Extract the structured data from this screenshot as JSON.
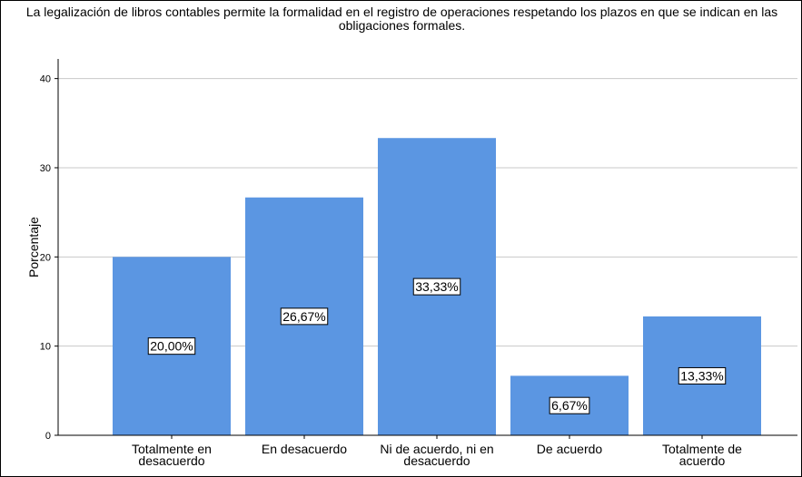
{
  "chart_data": {
    "type": "bar",
    "title": "La legalización de libros contables permite la formalidad en el registro de operaciones respetando los plazos en que se indican en las obligaciones formales.",
    "y_label": "Porcentaje",
    "categories": [
      "Totalmente en desacuerdo",
      "En desacuerdo",
      "Ni de acuerdo, ni en desacuerdo",
      "De acuerdo",
      "Totalmente de acuerdo"
    ],
    "values": [
      20,
      26.67,
      33.33,
      6.67,
      13.33
    ],
    "value_labels": [
      "20,00%",
      "26,67%",
      "33,33%",
      "6,67%",
      "13,33%"
    ],
    "color": "#5b96e2",
    "ylim": [
      0,
      42.2
    ],
    "yticks": [
      0,
      10,
      20,
      30,
      40
    ],
    "grid": true
  }
}
